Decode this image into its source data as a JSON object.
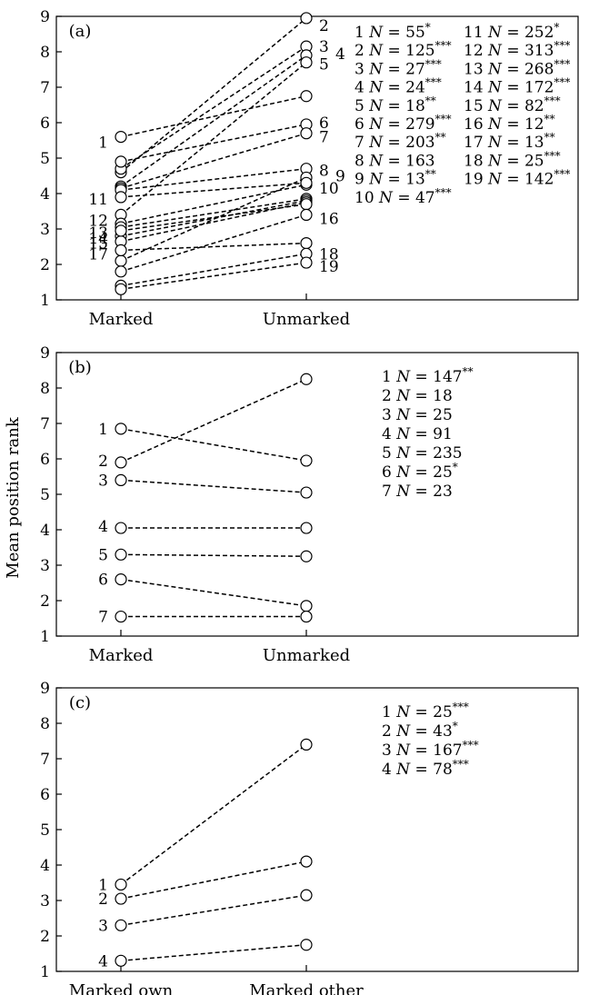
{
  "chart_data": [
    {
      "type": "line",
      "panel_label": "(a)",
      "categories": [
        "Marked",
        "Unmarked"
      ],
      "ylim": [
        1,
        9
      ],
      "yticks": [
        "1",
        "2",
        "3",
        "4",
        "5",
        "6",
        "7",
        "8",
        "9"
      ],
      "series": [
        {
          "name": "1",
          "values": [
            5.6,
            6.75
          ]
        },
        {
          "name": "2",
          "values": [
            4.6,
            8.95
          ]
        },
        {
          "name": "3",
          "values": [
            4.7,
            8.15
          ]
        },
        {
          "name": "4",
          "values": [
            4.2,
            7.9
          ]
        },
        {
          "name": "5",
          "values": [
            3.4,
            7.7
          ]
        },
        {
          "name": "6",
          "values": [
            4.9,
            5.95
          ]
        },
        {
          "name": "7",
          "values": [
            4.15,
            5.7
          ]
        },
        {
          "name": "8",
          "values": [
            4.1,
            4.7
          ]
        },
        {
          "name": "9",
          "values": [
            2.1,
            4.45
          ]
        },
        {
          "name": "10",
          "values": [
            3.15,
            4.25
          ]
        },
        {
          "name": "11",
          "values": [
            3.9,
            4.3
          ]
        },
        {
          "name": "12",
          "values": [
            3.05,
            3.85
          ]
        },
        {
          "name": "13",
          "values": [
            2.8,
            3.8
          ]
        },
        {
          "name": "14",
          "values": [
            2.65,
            3.75
          ]
        },
        {
          "name": "15",
          "values": [
            2.95,
            3.7
          ]
        },
        {
          "name": "16",
          "values": [
            1.8,
            3.4
          ]
        },
        {
          "name": "17",
          "values": [
            2.4,
            2.6
          ]
        },
        {
          "name": "18",
          "values": [
            1.4,
            2.3
          ]
        },
        {
          "name": "19",
          "values": [
            1.3,
            2.05
          ]
        }
      ],
      "point_labels_left": [
        {
          "text": "1",
          "y": 5.45
        },
        {
          "text": "11",
          "y": 3.85
        },
        {
          "text": "12",
          "y": 3.25
        },
        {
          "text": "13",
          "y": 2.9
        },
        {
          "text": "14",
          "y": 2.75
        },
        {
          "text": "15",
          "y": 2.6
        },
        {
          "text": "17",
          "y": 2.3
        }
      ],
      "point_labels_right": [
        {
          "text": "2",
          "y": 8.75
        },
        {
          "text": "3",
          "y": 8.15
        },
        {
          "text": "4",
          "y": 7.95
        },
        {
          "text": "5",
          "y": 7.65
        },
        {
          "text": "6",
          "y": 6.0
        },
        {
          "text": "7",
          "y": 5.6
        },
        {
          "text": "8",
          "y": 4.65
        },
        {
          "text": "9",
          "y": 4.5
        },
        {
          "text": "10",
          "y": 4.15
        },
        {
          "text": "16",
          "y": 3.3
        },
        {
          "text": "18",
          "y": 2.3
        },
        {
          "text": "19",
          "y": 1.95
        }
      ],
      "legend": [
        {
          "num": "1",
          "n": "55",
          "stars": "*"
        },
        {
          "num": "2",
          "n": "125",
          "stars": "***"
        },
        {
          "num": "3",
          "n": "27",
          "stars": "***"
        },
        {
          "num": "4",
          "n": "24",
          "stars": "***"
        },
        {
          "num": "5",
          "n": "18",
          "stars": "**"
        },
        {
          "num": "6",
          "n": "279",
          "stars": "***"
        },
        {
          "num": "7",
          "n": "203",
          "stars": "**"
        },
        {
          "num": "8",
          "n": "163",
          "stars": ""
        },
        {
          "num": "9",
          "n": "13",
          "stars": "**"
        },
        {
          "num": "10",
          "n": "47",
          "stars": "***"
        },
        {
          "num": "11",
          "n": "252",
          "stars": "*"
        },
        {
          "num": "12",
          "n": "313",
          "stars": "***"
        },
        {
          "num": "13",
          "n": "268",
          "stars": "***"
        },
        {
          "num": "14",
          "n": "172",
          "stars": "***"
        },
        {
          "num": "15",
          "n": "82",
          "stars": "***"
        },
        {
          "num": "16",
          "n": "12",
          "stars": "**"
        },
        {
          "num": "17",
          "n": "13",
          "stars": "**"
        },
        {
          "num": "18",
          "n": "25",
          "stars": "***"
        },
        {
          "num": "19",
          "n": "142",
          "stars": "***"
        }
      ]
    },
    {
      "type": "line",
      "panel_label": "(b)",
      "ylabel": "Mean position rank",
      "categories": [
        "Marked",
        "Unmarked"
      ],
      "ylim": [
        1,
        9
      ],
      "yticks": [
        "1",
        "2",
        "3",
        "4",
        "5",
        "6",
        "7",
        "8",
        "9"
      ],
      "series": [
        {
          "name": "1",
          "values": [
            6.85,
            5.95
          ]
        },
        {
          "name": "2",
          "values": [
            5.9,
            8.25
          ]
        },
        {
          "name": "3",
          "values": [
            5.4,
            5.05
          ]
        },
        {
          "name": "4",
          "values": [
            4.05,
            4.05
          ]
        },
        {
          "name": "5",
          "values": [
            3.3,
            3.25
          ]
        },
        {
          "name": "6",
          "values": [
            2.6,
            1.85
          ]
        },
        {
          "name": "7",
          "values": [
            1.55,
            1.55
          ]
        }
      ],
      "point_labels_left": [
        {
          "text": "1",
          "y": 6.85
        },
        {
          "text": "2",
          "y": 5.95
        },
        {
          "text": "3",
          "y": 5.4
        },
        {
          "text": "4",
          "y": 4.1
        },
        {
          "text": "5",
          "y": 3.3
        },
        {
          "text": "6",
          "y": 2.6
        },
        {
          "text": "7",
          "y": 1.55
        }
      ],
      "point_labels_right": [],
      "legend": [
        {
          "num": "1",
          "n": "147",
          "stars": "**"
        },
        {
          "num": "2",
          "n": "18",
          "stars": ""
        },
        {
          "num": "3",
          "n": "25",
          "stars": ""
        },
        {
          "num": "4",
          "n": "91",
          "stars": ""
        },
        {
          "num": "5",
          "n": "235",
          "stars": ""
        },
        {
          "num": "6",
          "n": "25",
          "stars": "*"
        },
        {
          "num": "7",
          "n": "23",
          "stars": ""
        }
      ]
    },
    {
      "type": "line",
      "panel_label": "(c)",
      "categories": [
        "Marked own",
        "Marked other"
      ],
      "ylim": [
        1,
        9
      ],
      "yticks": [
        "1",
        "2",
        "3",
        "4",
        "5",
        "6",
        "7",
        "8",
        "9"
      ],
      "series": [
        {
          "name": "1",
          "values": [
            3.45,
            7.4
          ]
        },
        {
          "name": "2",
          "values": [
            3.05,
            4.1
          ]
        },
        {
          "name": "3",
          "values": [
            2.3,
            3.15
          ]
        },
        {
          "name": "4",
          "values": [
            1.3,
            1.75
          ]
        }
      ],
      "point_labels_left": [
        {
          "text": "1",
          "y": 3.45
        },
        {
          "text": "2",
          "y": 3.05
        },
        {
          "text": "3",
          "y": 2.3
        },
        {
          "text": "4",
          "y": 1.3
        }
      ],
      "point_labels_right": [],
      "legend": [
        {
          "num": "1",
          "n": "25",
          "stars": "***"
        },
        {
          "num": "2",
          "n": "43",
          "stars": "*"
        },
        {
          "num": "3",
          "n": "167",
          "stars": "***"
        },
        {
          "num": "4",
          "n": "78",
          "stars": "***"
        }
      ]
    }
  ]
}
